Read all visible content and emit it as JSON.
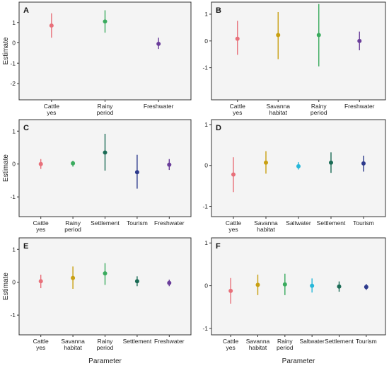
{
  "chart_data": [
    {
      "type": "scatter",
      "panel_label": "A",
      "ylabel": "Estimate",
      "xlabel": "",
      "ylim": [
        -2.8,
        2.0
      ],
      "yticks": [
        -2,
        -1,
        0,
        1
      ],
      "categories": [
        "Cattle\nyes",
        "Rainy\nperiod",
        "Freshwater"
      ],
      "points": [
        {
          "category": "Cattle\nyes",
          "estimate": 0.85,
          "lower": 0.25,
          "upper": 1.45,
          "color": "#e8707a"
        },
        {
          "category": "Rainy\nperiod",
          "estimate": 1.05,
          "lower": 0.5,
          "upper": 1.6,
          "color": "#3aab5e"
        },
        {
          "category": "Freshwater",
          "estimate": -0.05,
          "lower": -0.3,
          "upper": 0.25,
          "color": "#6a3d9a"
        }
      ]
    },
    {
      "type": "scatter",
      "panel_label": "B",
      "ylabel": "",
      "xlabel": "",
      "ylim": [
        -2.2,
        1.45
      ],
      "yticks": [
        -1,
        0,
        1
      ],
      "categories": [
        "Cattle\nyes",
        "Savanna\nhabitat",
        "Rainy\nperiod",
        "Freshwater"
      ],
      "points": [
        {
          "category": "Cattle\nyes",
          "estimate": 0.08,
          "lower": -0.52,
          "upper": 0.75,
          "color": "#e8707a"
        },
        {
          "category": "Savanna\nhabitat",
          "estimate": 0.22,
          "lower": -0.68,
          "upper": 1.08,
          "color": "#c9a012"
        },
        {
          "category": "Rainy\nperiod",
          "estimate": 0.22,
          "lower": -0.95,
          "upper": 1.38,
          "color": "#3aab5e"
        },
        {
          "category": "Freshwater",
          "estimate": 0.0,
          "lower": -0.35,
          "upper": 0.35,
          "color": "#6a3d9a"
        }
      ]
    },
    {
      "type": "scatter",
      "panel_label": "C",
      "ylabel": "Estimate",
      "xlabel": "",
      "ylim": [
        -1.6,
        1.35
      ],
      "yticks": [
        -1,
        0,
        1
      ],
      "categories": [
        "Cattle\nyes",
        "Rainy\nperiod",
        "Settlement",
        "Tourism",
        "Freshwater"
      ],
      "points": [
        {
          "category": "Cattle\nyes",
          "estimate": 0.0,
          "lower": -0.15,
          "upper": 0.15,
          "color": "#e8707a"
        },
        {
          "category": "Rainy\nperiod",
          "estimate": 0.02,
          "lower": -0.08,
          "upper": 0.1,
          "color": "#3aab5e"
        },
        {
          "category": "Settlement",
          "estimate": 0.35,
          "lower": -0.2,
          "upper": 0.92,
          "color": "#1a6b55"
        },
        {
          "category": "Tourism",
          "estimate": -0.25,
          "lower": -0.75,
          "upper": 0.28,
          "color": "#2d3a8c"
        },
        {
          "category": "Freshwater",
          "estimate": -0.02,
          "lower": -0.18,
          "upper": 0.15,
          "color": "#6a3d9a"
        }
      ]
    },
    {
      "type": "scatter",
      "panel_label": "D",
      "ylabel": "",
      "xlabel": "",
      "ylim": [
        -1.25,
        1.12
      ],
      "yticks": [
        -1,
        0,
        1
      ],
      "categories": [
        "Cattle\nyes",
        "Savanna\nhabitat",
        "Saltwater",
        "Settlement",
        "Tourism"
      ],
      "points": [
        {
          "category": "Cattle\nyes",
          "estimate": -0.22,
          "lower": -0.65,
          "upper": 0.2,
          "color": "#e8707a"
        },
        {
          "category": "Savanna\nhabitat",
          "estimate": 0.07,
          "lower": -0.2,
          "upper": 0.35,
          "color": "#c9a012"
        },
        {
          "category": "Saltwater",
          "estimate": -0.02,
          "lower": -0.1,
          "upper": 0.08,
          "color": "#26b7d9"
        },
        {
          "category": "Settlement",
          "estimate": 0.07,
          "lower": -0.18,
          "upper": 0.32,
          "color": "#1a6b55"
        },
        {
          "category": "Tourism",
          "estimate": 0.05,
          "lower": -0.15,
          "upper": 0.24,
          "color": "#2d3a8c"
        }
      ]
    },
    {
      "type": "scatter",
      "panel_label": "E",
      "ylabel": "Estimate",
      "xlabel": "Parameter",
      "ylim": [
        -1.6,
        1.35
      ],
      "yticks": [
        -1,
        0,
        1
      ],
      "categories": [
        "Cattle\nyes",
        "Savanna\nhabitat",
        "Rainy\nperiod",
        "Settlement",
        "Freshwater"
      ],
      "points": [
        {
          "category": "Cattle\nyes",
          "estimate": 0.03,
          "lower": -0.18,
          "upper": 0.23,
          "color": "#e8707a"
        },
        {
          "category": "Savanna\nhabitat",
          "estimate": 0.13,
          "lower": -0.2,
          "upper": 0.48,
          "color": "#c9a012"
        },
        {
          "category": "Rainy\nperiod",
          "estimate": 0.27,
          "lower": -0.08,
          "upper": 0.58,
          "color": "#3aab5e"
        },
        {
          "category": "Settlement",
          "estimate": 0.03,
          "lower": -0.12,
          "upper": 0.18,
          "color": "#1a6b55"
        },
        {
          "category": "Freshwater",
          "estimate": -0.02,
          "lower": -0.12,
          "upper": 0.08,
          "color": "#6a3d9a"
        }
      ]
    },
    {
      "type": "scatter",
      "panel_label": "F",
      "ylabel": "",
      "xlabel": "Parameter",
      "ylim": [
        -1.15,
        1.12
      ],
      "yticks": [
        -1,
        0,
        1
      ],
      "categories": [
        "Cattle\nyes",
        "Savanna\nhabitat",
        "Rainy\nperiod",
        "Saltwater",
        "Settlement",
        "Tourism"
      ],
      "points": [
        {
          "category": "Cattle\nyes",
          "estimate": -0.12,
          "lower": -0.42,
          "upper": 0.18,
          "color": "#e8707a"
        },
        {
          "category": "Savanna\nhabitat",
          "estimate": 0.02,
          "lower": -0.22,
          "upper": 0.26,
          "color": "#c9a012"
        },
        {
          "category": "Rainy\nperiod",
          "estimate": 0.03,
          "lower": -0.22,
          "upper": 0.28,
          "color": "#3aab5e"
        },
        {
          "category": "Saltwater",
          "estimate": 0.0,
          "lower": -0.16,
          "upper": 0.17,
          "color": "#26b7d9"
        },
        {
          "category": "Settlement",
          "estimate": -0.02,
          "lower": -0.14,
          "upper": 0.1,
          "color": "#1a6b55"
        },
        {
          "category": "Tourism",
          "estimate": -0.03,
          "lower": -0.1,
          "upper": 0.04,
          "color": "#2d3a8c"
        }
      ]
    }
  ],
  "style": {
    "panel_background": "#f4f4f4",
    "panel_border": "#333333"
  }
}
